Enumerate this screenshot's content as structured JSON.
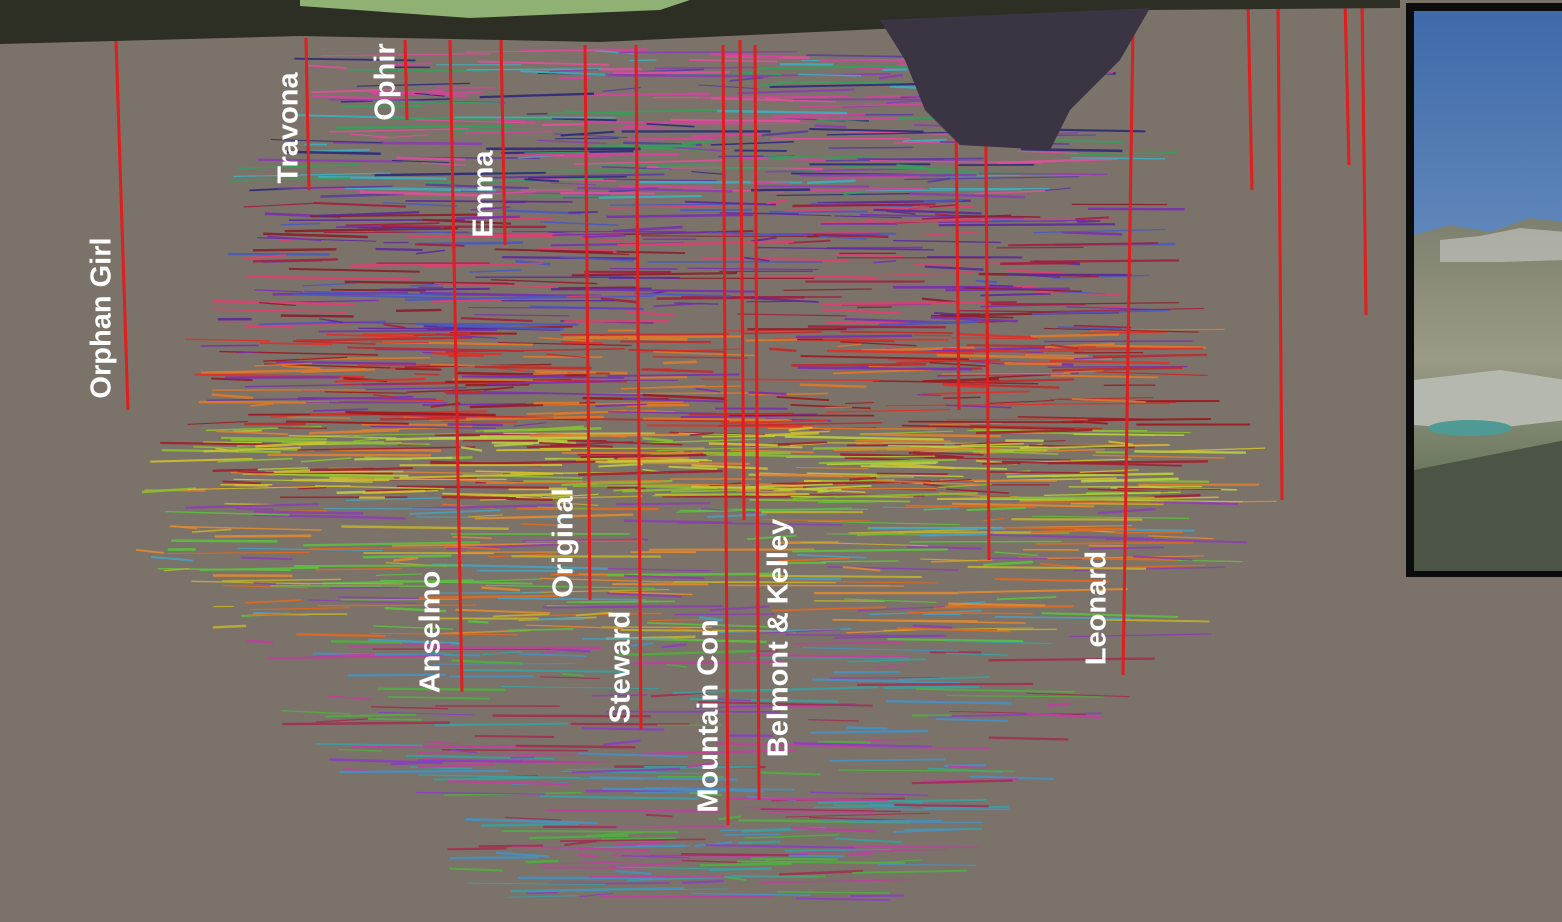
{
  "shafts": [
    {
      "label": "Orphan Girl"
    },
    {
      "label": "Travona"
    },
    {
      "label": "Ophir"
    },
    {
      "label": "Emma"
    },
    {
      "label": "Anselmo"
    },
    {
      "label": "Original"
    },
    {
      "label": "Steward"
    },
    {
      "label": "Mountain Con"
    },
    {
      "label": "Belmont & Kelley"
    },
    {
      "label": "Leonard"
    }
  ]
}
